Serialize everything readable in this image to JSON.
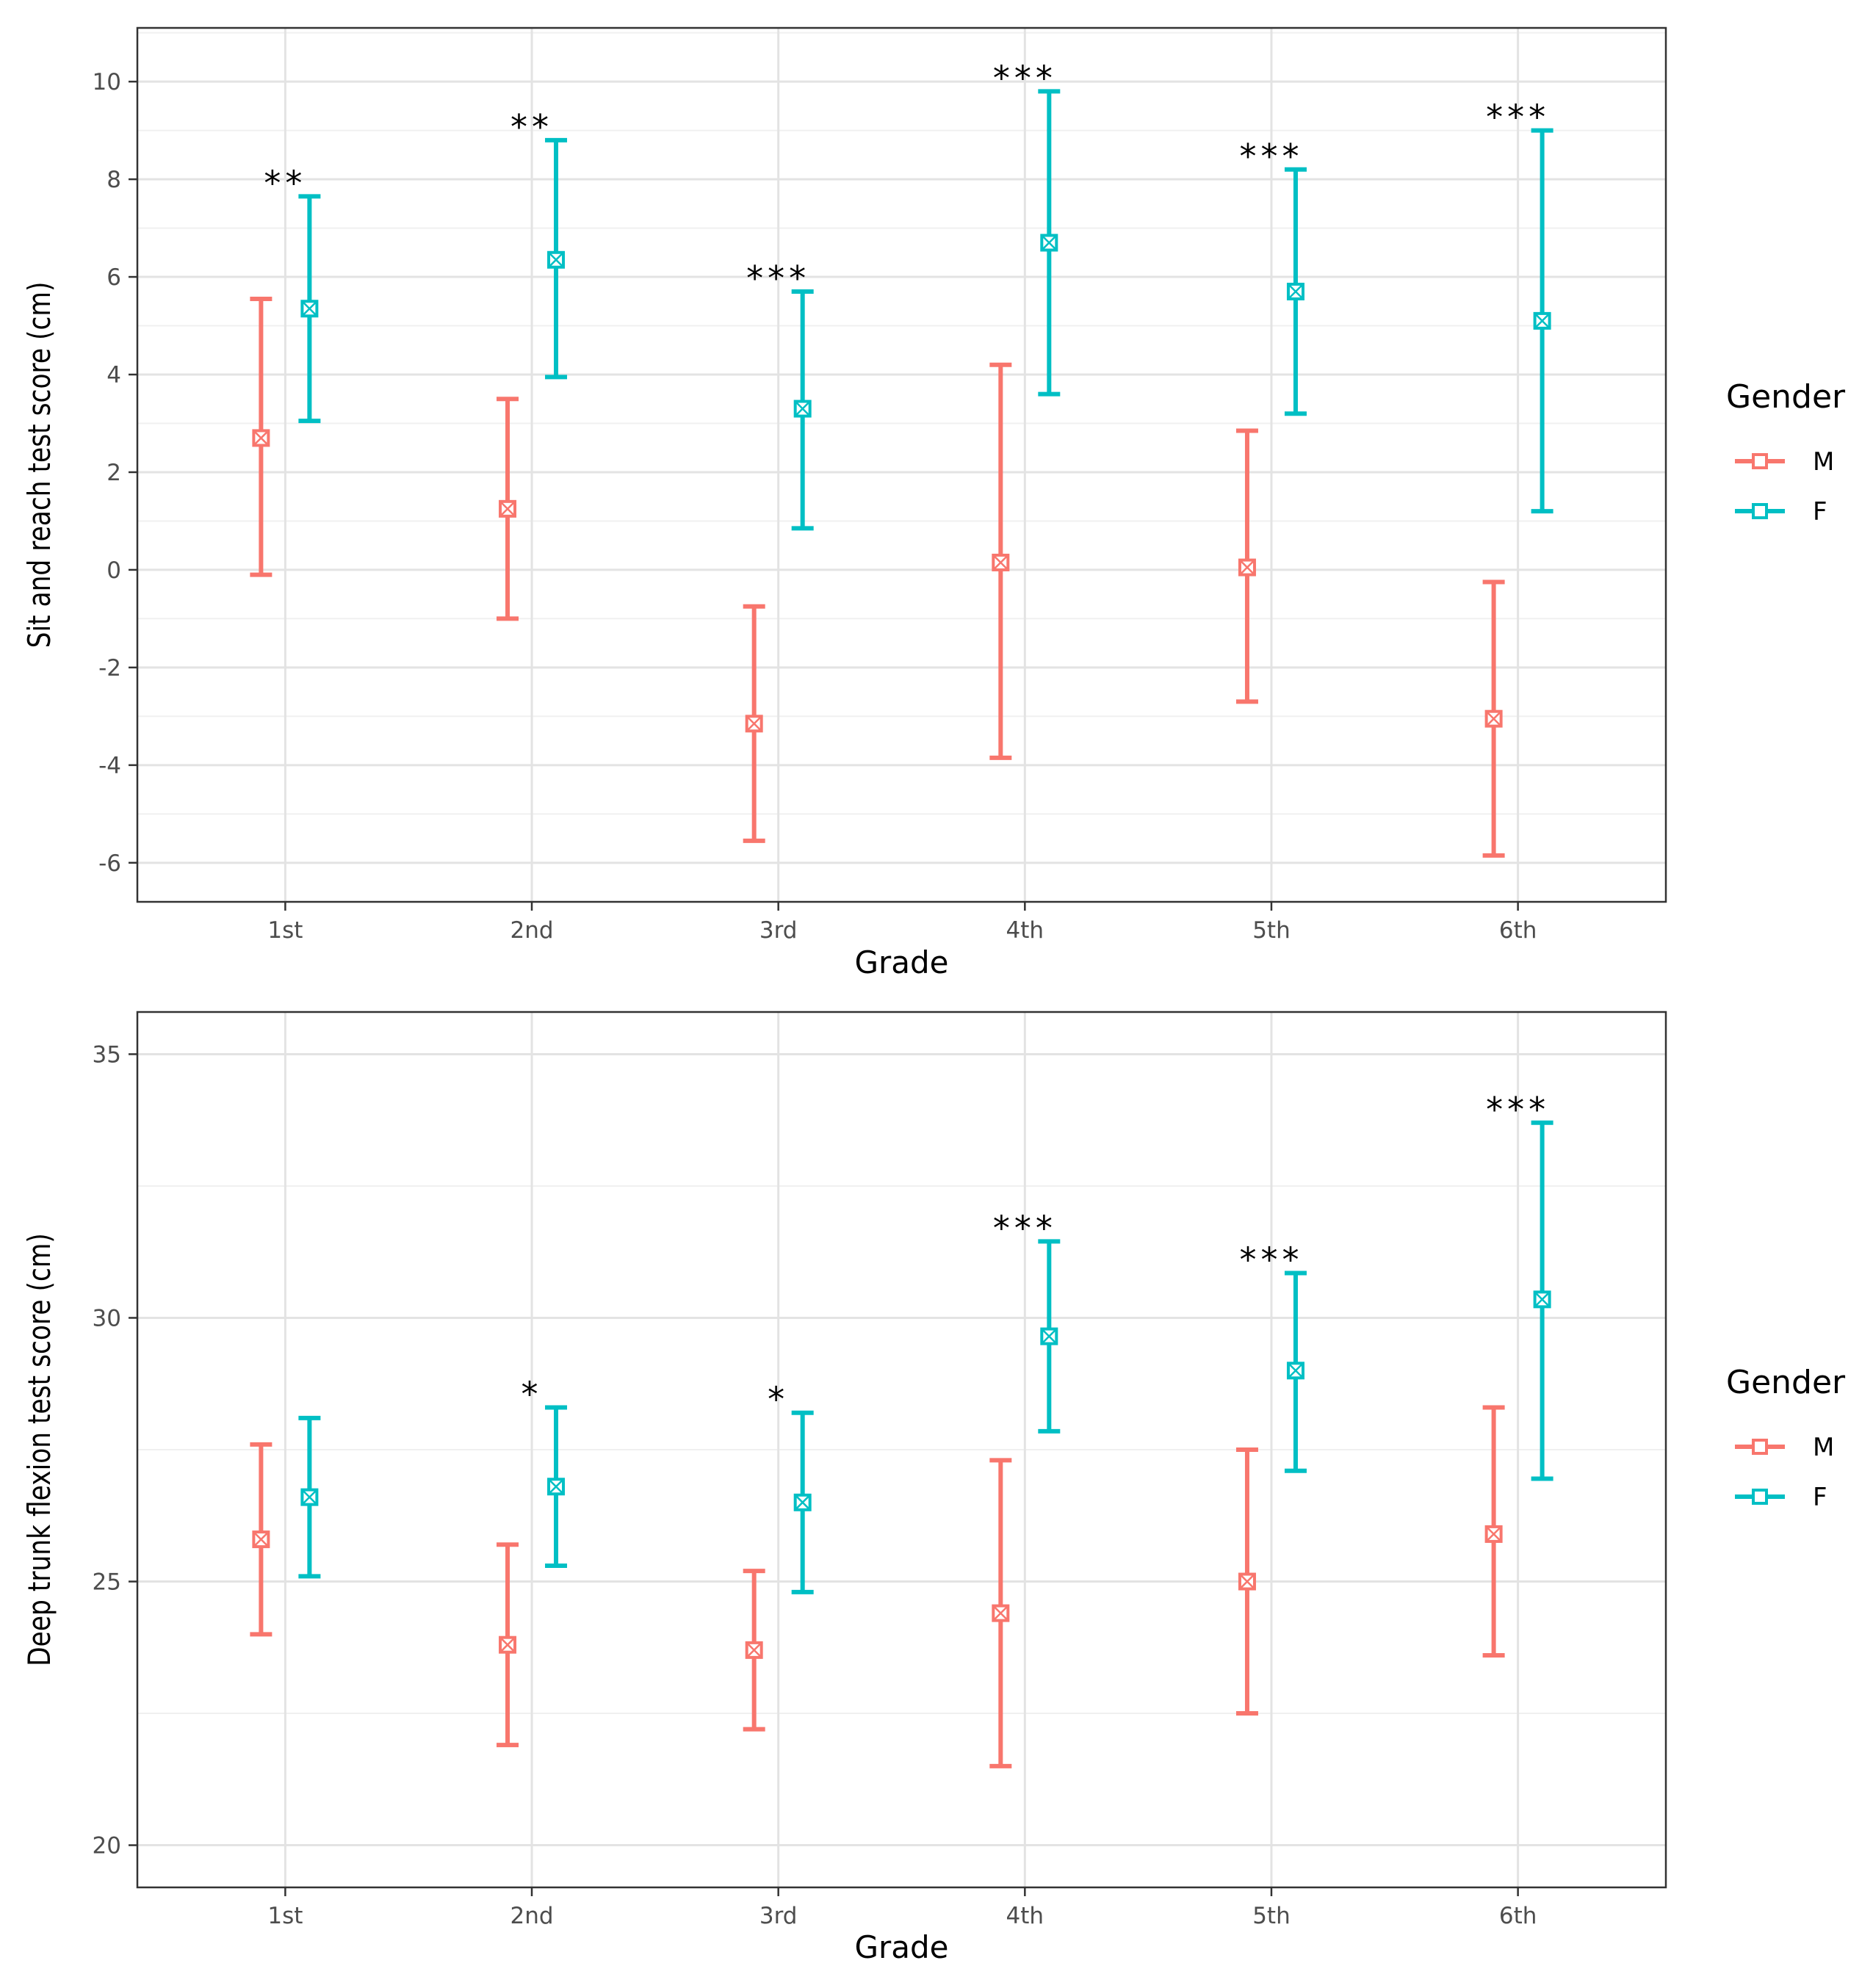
{
  "legend": {
    "title": "Gender",
    "entries": [
      {
        "label": "M",
        "color": "#F8766D"
      },
      {
        "label": "F",
        "color": "#00BFC4"
      }
    ]
  },
  "chart_data": [
    {
      "type": "errorbar",
      "xlabel": "Grade",
      "ylabel": "Sit and reach test score (cm)",
      "categories": [
        "1st",
        "2nd",
        "3rd",
        "4th",
        "5th",
        "6th"
      ],
      "ylim": [
        -6.8,
        11.1
      ],
      "yticks": [
        -6,
        -4,
        -2,
        0,
        2,
        4,
        6,
        8,
        10
      ],
      "ytick_labels": [
        "-6",
        "-4",
        "-2",
        "0",
        "2",
        "4",
        "6",
        "8",
        "10"
      ],
      "grid": true,
      "legend_position": "right",
      "series": [
        {
          "name": "M",
          "color": "#F8766D",
          "mean": [
            2.7,
            1.25,
            -3.15,
            0.15,
            0.05,
            -3.05
          ],
          "lower": [
            -0.1,
            -1.0,
            -5.55,
            -3.85,
            -2.7,
            -5.85
          ],
          "upper": [
            5.55,
            3.5,
            -0.75,
            4.2,
            2.85,
            -0.25
          ]
        },
        {
          "name": "F",
          "color": "#00BFC4",
          "mean": [
            5.35,
            6.35,
            3.3,
            6.7,
            5.7,
            5.1
          ],
          "lower": [
            3.05,
            3.95,
            0.85,
            3.6,
            3.2,
            1.2
          ],
          "upper": [
            7.65,
            8.8,
            5.7,
            9.8,
            8.2,
            9.0
          ]
        }
      ],
      "significance": [
        "**",
        "**",
        "***",
        "***",
        "***",
        "***"
      ]
    },
    {
      "type": "errorbar",
      "xlabel": "Grade",
      "ylabel": "Deep trunk flexion test score (cm)",
      "categories": [
        "1st",
        "2nd",
        "3rd",
        "4th",
        "5th",
        "6th"
      ],
      "ylim": [
        19.2,
        35.8
      ],
      "yticks": [
        20,
        25,
        30,
        35
      ],
      "ytick_labels": [
        "20",
        "25",
        "30",
        "35"
      ],
      "grid": true,
      "legend_position": "right",
      "series": [
        {
          "name": "M",
          "color": "#F8766D",
          "mean": [
            25.8,
            23.8,
            23.7,
            24.4,
            25.0,
            25.9
          ],
          "lower": [
            24.0,
            21.9,
            22.2,
            21.5,
            22.5,
            23.6
          ],
          "upper": [
            27.6,
            25.7,
            25.2,
            27.3,
            27.5,
            28.3
          ]
        },
        {
          "name": "F",
          "color": "#00BFC4",
          "mean": [
            26.6,
            26.8,
            26.5,
            29.65,
            29.0,
            30.35
          ],
          "lower": [
            25.1,
            25.3,
            24.8,
            27.85,
            27.1,
            26.95
          ],
          "upper": [
            28.1,
            28.3,
            28.2,
            31.45,
            30.85,
            33.7
          ]
        }
      ],
      "significance": [
        "",
        "*",
        "*",
        "***",
        "***",
        "***"
      ]
    }
  ]
}
